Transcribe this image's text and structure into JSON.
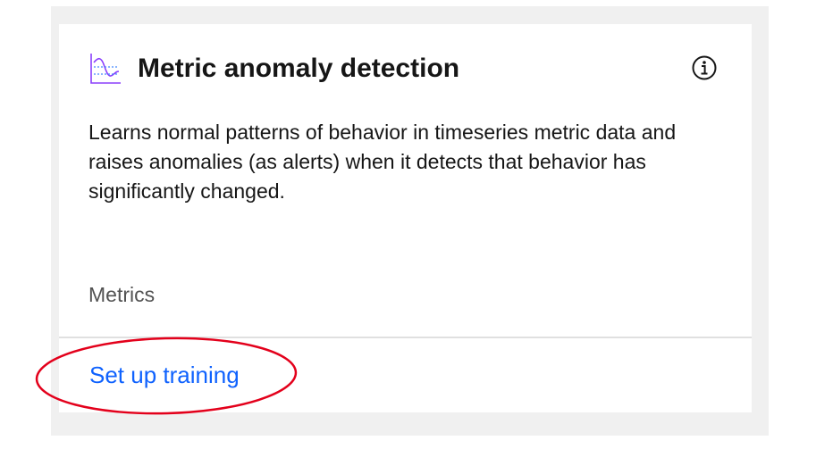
{
  "card": {
    "title": "Metric anomaly detection",
    "description": "Learns normal patterns of behavior in timeseries metric data and raises anomalies (as alerts) when it detects that behavior has significantly changed.",
    "metrics_label": "Metrics",
    "action_label": "Set up training",
    "title_icon": "timeseries-chart-icon",
    "info_icon": "information-icon"
  },
  "colors": {
    "link": "#0f62fe",
    "icon_accent": "#8a3ffc",
    "annotation": "#e3001b",
    "frame_background": "#f0f0f0",
    "card_background": "#ffffff"
  }
}
